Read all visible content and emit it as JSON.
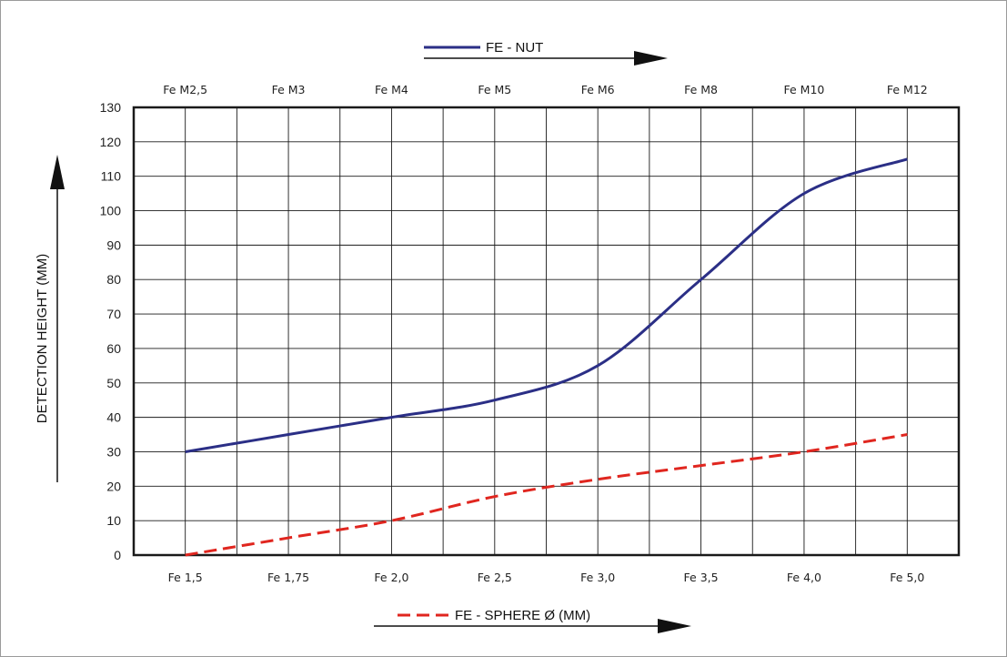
{
  "chart_data": {
    "type": "line",
    "ylabel": "DETECTION HEIGHT (MM)",
    "ylim": [
      0,
      130
    ],
    "y_ticks": [
      0,
      10,
      20,
      30,
      40,
      50,
      60,
      70,
      80,
      90,
      100,
      110,
      120,
      130
    ],
    "grid": true,
    "categories_top": [
      "Fe M2,5",
      "Fe M3",
      "Fe M4",
      "Fe M5",
      "Fe M6",
      "Fe M8",
      "Fe M10",
      "Fe M12"
    ],
    "categories_bottom": [
      "Fe 1,5",
      "Fe 1,75",
      "Fe 2,0",
      "Fe 2,5",
      "Fe 3,0",
      "Fe 3,5",
      "Fe 4,0",
      "Fe 5,0"
    ],
    "series": [
      {
        "name": "FE - NUT",
        "color": "#2b2f86",
        "style": "solid",
        "axis": "top",
        "values": [
          30,
          35,
          40,
          45,
          55,
          80,
          105,
          115
        ]
      },
      {
        "name": "FE - SPHERE Ø (MM)",
        "color": "#e0261f",
        "style": "dashed",
        "axis": "bottom",
        "values": [
          0,
          5,
          10,
          17,
          22,
          26,
          30,
          35
        ]
      }
    ]
  }
}
